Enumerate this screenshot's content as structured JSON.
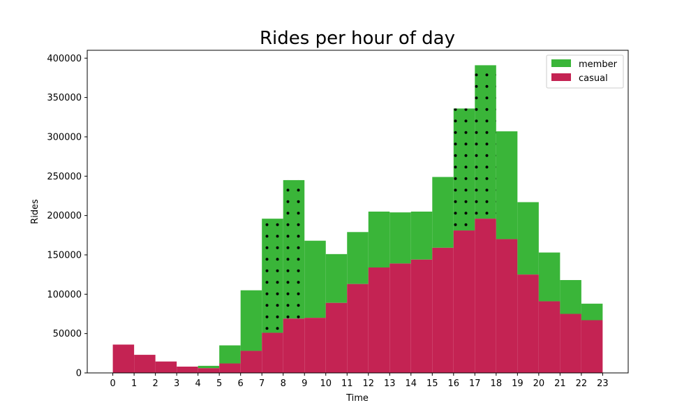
{
  "chart_data": {
    "type": "bar",
    "title": "Rides per hour of day",
    "xlabel": "Time",
    "ylabel": "Rides",
    "stacked": true,
    "x_ticks": [
      "0",
      "1",
      "2",
      "3",
      "4",
      "5",
      "6",
      "7",
      "8",
      "9",
      "10",
      "11",
      "12",
      "13",
      "14",
      "15",
      "16",
      "17",
      "18",
      "19",
      "20",
      "21",
      "22",
      "23"
    ],
    "bins": [
      0,
      1,
      2,
      3,
      4,
      5,
      6,
      7,
      8,
      9,
      10,
      11,
      12,
      13,
      14,
      15,
      16,
      17,
      18,
      19,
      20,
      21,
      22
    ],
    "y_ticks": [
      0,
      50000,
      100000,
      150000,
      200000,
      250000,
      300000,
      350000,
      400000
    ],
    "ylim": [
      0,
      410000
    ],
    "xlim": [
      -1.2,
      24.2
    ],
    "grid": false,
    "legend_position": "top-right",
    "hatched_bins": [
      7,
      8,
      16,
      17
    ],
    "series": [
      {
        "name": "casual",
        "color": "#c42353",
        "values": [
          36000,
          23000,
          14500,
          8000,
          6000,
          12000,
          28000,
          51000,
          69000,
          70000,
          89000,
          113000,
          134000,
          139000,
          144000,
          159000,
          181000,
          196000,
          170000,
          125000,
          91000,
          75000,
          67000
        ]
      },
      {
        "name": "member",
        "color": "#3ab539",
        "totals": [
          36000,
          23000,
          14500,
          8000,
          9000,
          35000,
          105000,
          196000,
          245000,
          168000,
          151000,
          179000,
          205000,
          204000,
          205000,
          249000,
          336000,
          391000,
          307000,
          217000,
          153000,
          118000,
          88000
        ]
      }
    ]
  }
}
